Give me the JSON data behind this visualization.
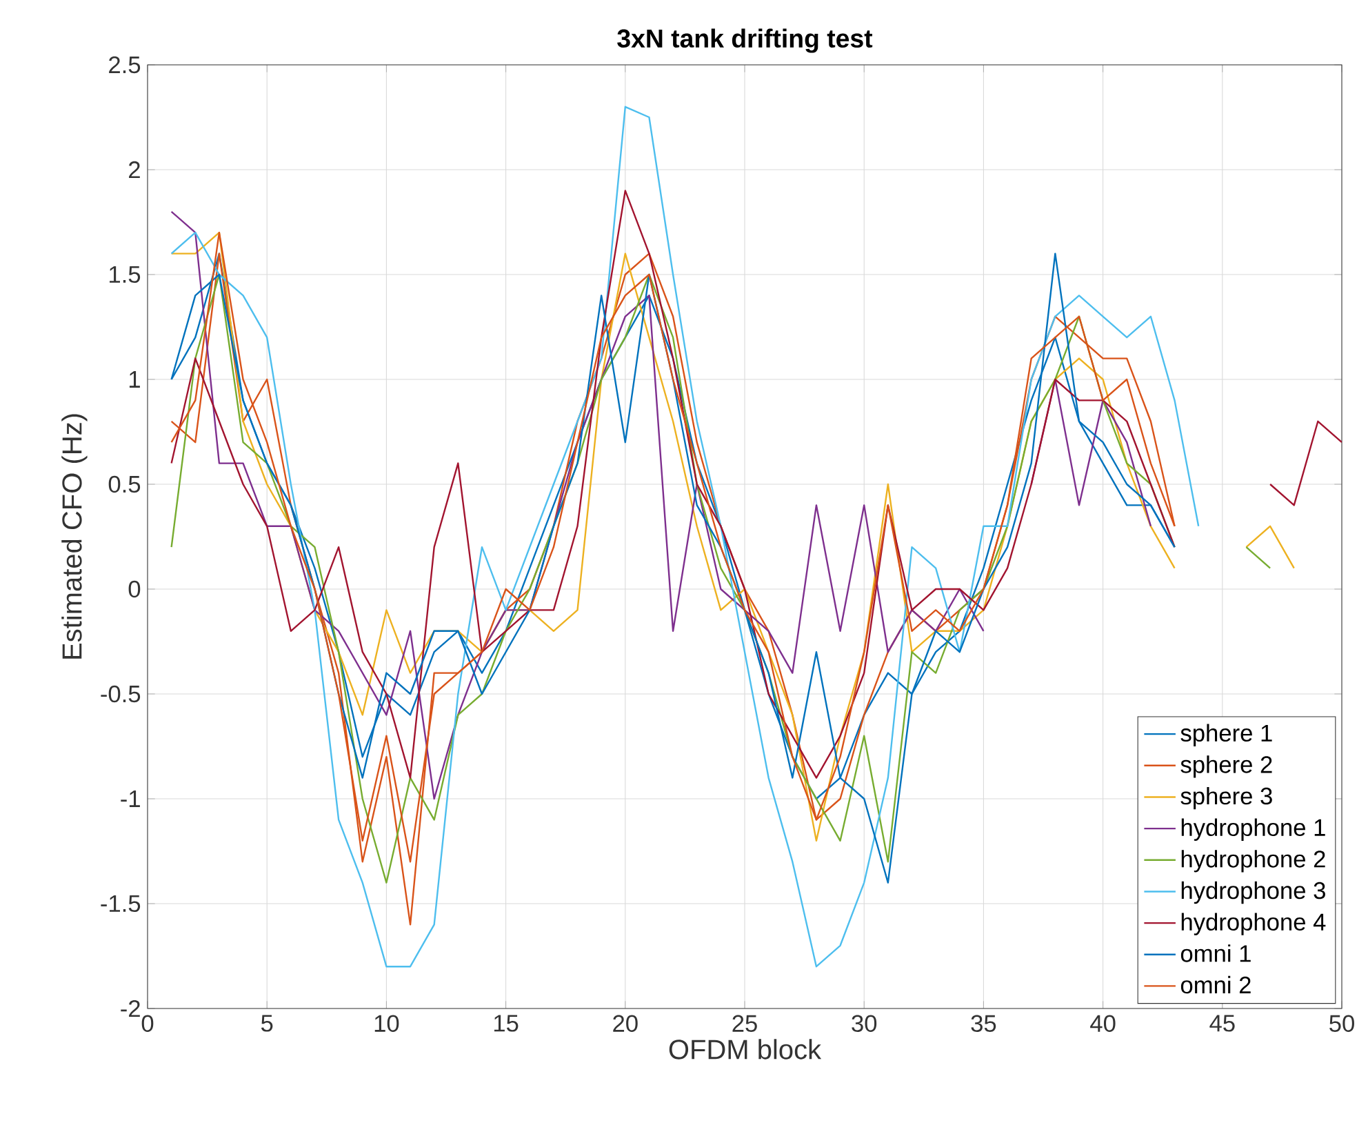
{
  "chart_data": {
    "type": "line",
    "title": "3xN tank drifting test",
    "xlabel": "OFDM block",
    "ylabel": "Estimated CFO (Hz)",
    "x": [
      1,
      2,
      3,
      4,
      5,
      6,
      7,
      8,
      9,
      10,
      11,
      12,
      13,
      14,
      15,
      16,
      17,
      18,
      19,
      20,
      21,
      22,
      23,
      24,
      25,
      26,
      27,
      28,
      29,
      30,
      31,
      32,
      33,
      34,
      35,
      36,
      37,
      38,
      39,
      40,
      41,
      42,
      43,
      44,
      45,
      46,
      47,
      48,
      49,
      50
    ],
    "xlim": [
      0,
      50
    ],
    "xticks": [
      0,
      5,
      10,
      15,
      20,
      25,
      30,
      35,
      40,
      45,
      50
    ],
    "ylim": [
      -2,
      2.5
    ],
    "yticks": [
      -2,
      -1.5,
      -1,
      -0.5,
      0,
      0.5,
      1,
      1.5,
      2,
      2.5
    ],
    "grid": true,
    "legend": "bottom right",
    "marker": "none",
    "line_style": "solid",
    "series": [
      {
        "name": "sphere 1",
        "color": "#0072bd",
        "values": [
          1.0,
          1.2,
          1.6,
          0.9,
          0.6,
          0.4,
          0.1,
          -0.3,
          -0.8,
          -0.5,
          -0.6,
          -0.3,
          -0.2,
          -0.4,
          -0.2,
          0.1,
          0.4,
          0.7,
          1.0,
          1.2,
          1.4,
          1.1,
          0.6,
          0.3,
          -0.1,
          -0.5,
          -0.8,
          -1.0,
          -0.9,
          -0.6,
          -0.4,
          -0.5,
          -0.3,
          -0.2,
          0.1,
          0.5,
          0.9,
          1.2,
          0.8,
          0.6,
          0.4,
          0.4,
          0.2,
          null,
          null,
          null,
          null,
          null,
          null,
          null
        ]
      },
      {
        "name": "sphere 2",
        "color": "#d95319",
        "values": [
          0.8,
          0.7,
          1.6,
          0.8,
          1.0,
          0.4,
          0.0,
          -0.4,
          -1.3,
          -0.8,
          -1.6,
          -0.4,
          -0.4,
          -0.3,
          -0.1,
          0.0,
          0.3,
          0.8,
          1.1,
          1.5,
          1.6,
          1.3,
          0.7,
          0.3,
          0.0,
          -0.2,
          -0.6,
          -1.1,
          -1.0,
          -0.6,
          -0.3,
          -0.1,
          -0.2,
          -0.1,
          0.0,
          0.4,
          1.0,
          1.3,
          1.2,
          1.1,
          1.1,
          0.8,
          0.3,
          null,
          null,
          null,
          null,
          null,
          null,
          null
        ]
      },
      {
        "name": "sphere 3",
        "color": "#edb120",
        "values": [
          1.6,
          1.6,
          1.7,
          0.8,
          0.5,
          0.3,
          -0.1,
          -0.3,
          -0.6,
          -0.1,
          -0.4,
          -0.2,
          -0.2,
          -0.3,
          -0.1,
          -0.1,
          -0.2,
          -0.1,
          1.0,
          1.6,
          1.2,
          0.8,
          0.3,
          -0.1,
          0.0,
          -0.3,
          -0.6,
          -1.2,
          -0.7,
          -0.3,
          0.5,
          -0.3,
          -0.2,
          -0.2,
          -0.1,
          0.3,
          0.8,
          1.0,
          1.1,
          1.0,
          0.6,
          0.3,
          0.1,
          null,
          null,
          0.2,
          0.3,
          0.1,
          null,
          null
        ]
      },
      {
        "name": "hydrophone 1",
        "color": "#7e2f8e",
        "values": [
          1.8,
          1.7,
          0.6,
          0.6,
          0.3,
          0.3,
          -0.1,
          -0.2,
          -0.4,
          -0.6,
          -0.2,
          -1.0,
          -0.6,
          -0.3,
          -0.1,
          -0.1,
          0.3,
          0.7,
          1.0,
          1.3,
          1.4,
          -0.2,
          0.5,
          0.0,
          -0.1,
          -0.2,
          -0.4,
          0.4,
          -0.2,
          0.4,
          -0.3,
          -0.1,
          -0.2,
          0.0,
          -0.2,
          null,
          0.5,
          1.0,
          0.4,
          0.9,
          0.7,
          0.3,
          null,
          null,
          null,
          null,
          null,
          null,
          null,
          null
        ]
      },
      {
        "name": "hydrophone 2",
        "color": "#77ac30",
        "values": [
          0.2,
          1.1,
          1.5,
          0.7,
          0.6,
          0.3,
          0.2,
          -0.3,
          -1.0,
          -1.4,
          -0.9,
          -1.1,
          -0.6,
          -0.5,
          -0.2,
          0.0,
          0.3,
          0.6,
          1.0,
          1.2,
          1.5,
          1.2,
          0.5,
          0.1,
          -0.1,
          -0.4,
          -0.8,
          -1.0,
          -1.2,
          -0.7,
          -1.3,
          -0.3,
          -0.4,
          -0.1,
          0.0,
          0.3,
          0.8,
          1.0,
          1.3,
          0.9,
          0.6,
          0.5,
          0.2,
          null,
          null,
          0.2,
          0.1,
          null,
          null,
          null
        ]
      },
      {
        "name": "hydrophone 3",
        "color": "#4dbeee",
        "values": [
          1.6,
          1.7,
          1.5,
          1.4,
          1.2,
          0.5,
          -0.1,
          -1.1,
          -1.4,
          -1.8,
          -1.8,
          -1.6,
          -0.5,
          0.2,
          -0.1,
          0.2,
          0.5,
          0.8,
          1.1,
          2.3,
          2.25,
          1.5,
          0.8,
          0.3,
          -0.3,
          -0.9,
          -1.3,
          -1.8,
          -1.7,
          -1.4,
          -0.9,
          0.2,
          0.1,
          -0.3,
          0.3,
          0.3,
          1.0,
          1.3,
          1.4,
          1.3,
          1.2,
          1.3,
          0.9,
          0.3,
          null,
          null,
          null,
          null,
          null,
          null
        ]
      },
      {
        "name": "hydrophone 4",
        "color": "#a2142f",
        "values": [
          0.6,
          1.1,
          0.8,
          0.5,
          0.3,
          -0.2,
          -0.1,
          0.2,
          -0.3,
          -0.5,
          -0.9,
          0.2,
          0.6,
          -0.3,
          -0.2,
          -0.1,
          -0.1,
          0.3,
          1.2,
          1.9,
          1.6,
          1.1,
          0.5,
          0.3,
          0.0,
          -0.5,
          -0.7,
          -0.9,
          -0.7,
          -0.4,
          0.4,
          -0.1,
          0.0,
          0.0,
          -0.1,
          0.1,
          0.5,
          1.0,
          0.9,
          0.9,
          0.8,
          0.5,
          0.2,
          null,
          null,
          null,
          0.5,
          0.4,
          0.8,
          0.7
        ]
      },
      {
        "name": "omni 1",
        "color": "#0072bd",
        "values": [
          1.0,
          1.4,
          1.5,
          0.9,
          0.6,
          0.4,
          0.0,
          -0.5,
          -0.9,
          -0.4,
          -0.5,
          -0.2,
          -0.2,
          -0.5,
          -0.3,
          -0.1,
          0.3,
          0.6,
          1.4,
          0.7,
          1.5,
          1.0,
          0.4,
          0.2,
          -0.1,
          -0.4,
          -0.9,
          -0.3,
          -0.9,
          -1.0,
          -1.4,
          -0.5,
          -0.2,
          -0.3,
          0.0,
          0.2,
          0.6,
          1.6,
          0.8,
          0.7,
          0.5,
          0.4,
          0.2,
          null,
          null,
          null,
          null,
          null,
          null,
          null
        ]
      },
      {
        "name": "omni 2",
        "color": "#d95319",
        "values": [
          0.7,
          0.9,
          1.7,
          1.0,
          0.7,
          0.3,
          0.0,
          -0.5,
          -1.2,
          -0.7,
          -1.3,
          -0.5,
          -0.4,
          -0.3,
          0.0,
          -0.1,
          0.2,
          0.7,
          1.2,
          1.4,
          1.5,
          1.0,
          0.6,
          0.2,
          -0.1,
          -0.3,
          -0.8,
          -1.1,
          -0.8,
          -0.3,
          0.4,
          -0.2,
          -0.1,
          -0.2,
          0.0,
          0.4,
          1.1,
          1.2,
          1.3,
          0.9,
          1.0,
          0.6,
          0.3,
          null,
          null,
          null,
          null,
          null,
          null,
          null
        ]
      }
    ]
  }
}
